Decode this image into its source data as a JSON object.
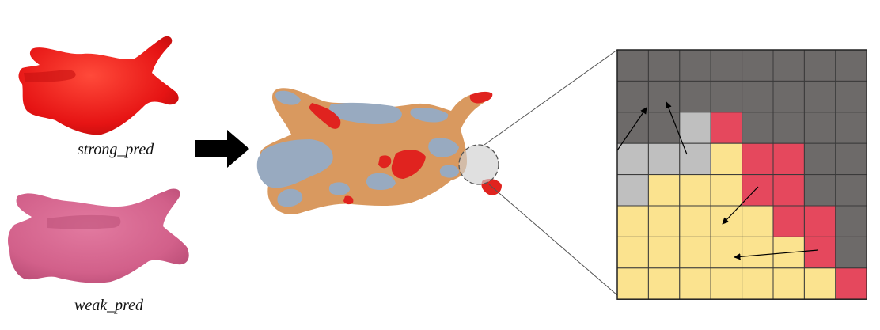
{
  "labels": {
    "strong": "strong_pred",
    "weak": "weak_pred"
  },
  "colors": {
    "strong_pred": "#ee1c1c",
    "weak_pred": "#d6648e",
    "merged_orange": "#d9995f",
    "merged_blue": "#98aac0",
    "grid_dark": "#6d6a69",
    "grid_gray": "#bfbfbf",
    "grid_yellow": "#fbe38f",
    "grid_red": "#e5485d",
    "arrow": "#000000"
  },
  "grid": {
    "rows": 8,
    "cols": 8,
    "cells": [
      [
        "dark",
        "dark",
        "dark",
        "dark",
        "dark",
        "dark",
        "dark",
        "dark"
      ],
      [
        "dark",
        "dark",
        "dark",
        "dark",
        "dark",
        "dark",
        "dark",
        "dark"
      ],
      [
        "dark",
        "dark",
        "gray",
        "red",
        "dark",
        "dark",
        "dark",
        "dark"
      ],
      [
        "gray",
        "gray",
        "gray",
        "yellow",
        "red",
        "red",
        "dark",
        "dark"
      ],
      [
        "gray",
        "yellow",
        "yellow",
        "yellow",
        "red",
        "red",
        "dark",
        "dark"
      ],
      [
        "yellow",
        "yellow",
        "yellow",
        "yellow",
        "yellow",
        "red",
        "red",
        "dark"
      ],
      [
        "yellow",
        "yellow",
        "yellow",
        "yellow",
        "yellow",
        "yellow",
        "red",
        "dark"
      ],
      [
        "yellow",
        "yellow",
        "yellow",
        "yellow",
        "yellow",
        "yellow",
        "yellow",
        "red"
      ]
    ]
  }
}
